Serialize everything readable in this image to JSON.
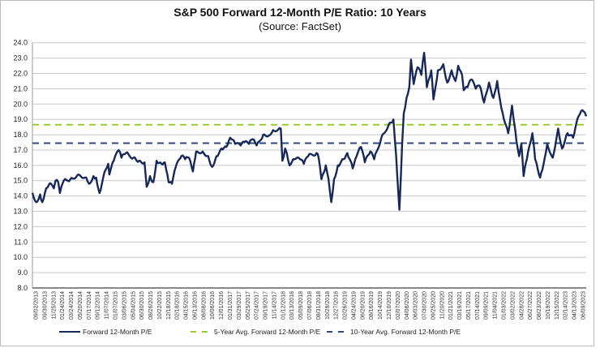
{
  "chart_data": {
    "type": "line",
    "title": "S&P 500 Forward 12-Month P/E Ratio: 10 Years",
    "subtitle": "(Source: FactSet)",
    "xlabel": "",
    "ylabel": "",
    "ylim": [
      8.0,
      24.0
    ],
    "xlim": [
      2013.67,
      2023.75
    ],
    "ytick_labels": [
      "8.0",
      "9.0",
      "10.0",
      "11.0",
      "12.0",
      "13.0",
      "14.0",
      "15.0",
      "16.0",
      "17.0",
      "18.0",
      "19.0",
      "20.0",
      "21.0",
      "22.0",
      "23.0",
      "24.0"
    ],
    "xtick_labels": [
      "09/02/2013",
      "09/30/2013",
      "11/25/2013",
      "01/24/2014",
      "03/24/2014",
      "05/20/2014",
      "07/17/2014",
      "09/12/2014",
      "11/07/2014",
      "01/07/2015",
      "03/06/2015",
      "05/04/2015",
      "06/30/2015",
      "08/26/2015",
      "10/22/2015",
      "12/18/2015",
      "02/18/2016",
      "04/15/2016",
      "06/13/2016",
      "08/08/2016",
      "10/06/2016",
      "12/01/2016",
      "01/31/2017",
      "03/29/2017",
      "05/25/2017",
      "07/24/2017",
      "09/19/2017",
      "11/14/2017",
      "01/12/2018",
      "03/13/2018",
      "05/09/2018",
      "07/06/2018",
      "08/31/2018",
      "10/29/2018",
      "12/27/2018",
      "02/26/2019",
      "04/24/2019",
      "06/20/2019",
      "08/16/2019",
      "10/14/2019",
      "12/10/2019",
      "02/07/2020",
      "04/06/2020",
      "06/03/2020",
      "07/30/2020",
      "09/25/2020",
      "11/20/2020",
      "01/21/2021",
      "03/19/2021",
      "05/17/2021",
      "07/14/2021",
      "09/09/2021",
      "11/04/2021",
      "01/03/2022",
      "03/02/2022",
      "04/28/2022",
      "06/27/2022",
      "08/23/2022",
      "10/19/2022",
      "12/15/2022",
      "02/14/2023",
      "04/13/2023",
      "06/09/2023"
    ],
    "grid": true,
    "legend_position": "bottom",
    "series": [
      {
        "name": "Forward 12-Month P/E",
        "color": "#16295a",
        "style": "solid",
        "x": [
          2013.67,
          2013.74,
          2013.81,
          2013.85,
          2013.92,
          2014.01,
          2014.06,
          2014.09,
          2014.14,
          2014.17,
          2014.24,
          2014.36,
          2014.51,
          2014.65,
          2014.7,
          2014.78,
          2014.83,
          2014.89,
          2015.0,
          2015.05,
          2015.07,
          2015.15,
          2015.24,
          2015.29,
          2015.37,
          2015.51,
          2015.61,
          2015.71,
          2015.75,
          2015.81,
          2015.87,
          2015.93,
          2016.02,
          2016.08,
          2016.15,
          2016.21,
          2016.28,
          2016.38,
          2016.45,
          2016.52,
          2016.59,
          2016.65,
          2016.77,
          2016.87,
          2016.94,
          2017.02,
          2017.11,
          2017.2,
          2017.27,
          2017.36,
          2017.46,
          2017.53,
          2017.61,
          2017.68,
          2017.75,
          2017.87,
          2018.0,
          2018.05,
          2018.19,
          2018.22,
          2018.27,
          2018.3,
          2018.35,
          2018.44,
          2018.54,
          2018.61,
          2018.69,
          2018.84,
          2018.88,
          2018.93,
          2019.01,
          2019.06,
          2019.11,
          2019.16,
          2019.23,
          2019.33,
          2019.4,
          2019.5,
          2019.57,
          2019.65,
          2019.72,
          2019.82,
          2019.89,
          2020.02,
          2020.16,
          2020.24,
          2020.29,
          2020.35,
          2020.4,
          2020.43,
          2020.48,
          2020.53,
          2020.56,
          2020.61,
          2020.68,
          2020.75,
          2020.8,
          2020.85,
          2020.93,
          2020.97,
          2021.05,
          2021.15,
          2021.22,
          2021.3,
          2021.37,
          2021.42,
          2021.49,
          2021.52,
          2021.59,
          2021.66,
          2021.74,
          2021.81,
          2021.89,
          2021.98,
          2022.06,
          2022.13,
          2022.18,
          2022.23,
          2022.33,
          2022.4,
          2022.48,
          2022.53,
          2022.57,
          2022.61,
          2022.67,
          2022.77,
          2022.82,
          2022.91,
          2022.97,
          2023.04,
          2023.14,
          2023.24,
          2023.31,
          2023.41,
          2023.51,
          2023.61,
          2023.68,
          2023.75
        ],
        "values": [
          14.2,
          13.6,
          14.1,
          13.6,
          14.5,
          14.8,
          14.5,
          15.0,
          14.9,
          14.2,
          15.0,
          15.1,
          15.4,
          15.2,
          14.8,
          15.3,
          15.2,
          14.2,
          15.7,
          16.1,
          15.4,
          16.3,
          17.0,
          16.5,
          16.8,
          16.5,
          16.3,
          16.2,
          14.6,
          15.3,
          14.9,
          16.3,
          16.1,
          16.2,
          14.9,
          14.8,
          15.9,
          16.6,
          16.4,
          16.5,
          15.6,
          16.9,
          16.9,
          16.6,
          15.9,
          16.6,
          17.1,
          17.2,
          17.8,
          17.4,
          17.3,
          17.5,
          17.4,
          17.7,
          17.3,
          18.0,
          18.0,
          18.3,
          18.4,
          16.3,
          17.1,
          16.8,
          16.0,
          16.4,
          16.4,
          16.1,
          16.6,
          16.8,
          16.5,
          15.1,
          16.0,
          15.1,
          13.6,
          15.1,
          16.0,
          16.4,
          16.8,
          15.8,
          16.6,
          17.2,
          16.2,
          16.9,
          16.4,
          17.8,
          18.7,
          19.0,
          16.6,
          13.1,
          17.4,
          19.4,
          20.4,
          21.1,
          22.9,
          21.3,
          22.4,
          21.9,
          23.35,
          21.1,
          22.2,
          20.3,
          22.2,
          22.6,
          21.4,
          22.2,
          21.5,
          22.5,
          21.9,
          20.9,
          21.1,
          21.6,
          21.0,
          21.2,
          20.1,
          21.4,
          20.4,
          21.5,
          20.3,
          19.4,
          18.1,
          19.9,
          17.6,
          16.6,
          17.4,
          15.3,
          16.4,
          18.1,
          16.4,
          15.2,
          16.0,
          17.4,
          16.5,
          18.4,
          17.1,
          18.1,
          17.8,
          19.2,
          19.6,
          19.2
        ]
      },
      {
        "name": "5-Year Avg. Forward 12-Month P/E",
        "color": "#9acd32",
        "style": "dashed",
        "value": 18.65
      },
      {
        "name": "10-Year Avg. Forward 12-Month P/E",
        "color": "#2e4a7d",
        "style": "dashed",
        "value": 17.45
      }
    ]
  }
}
